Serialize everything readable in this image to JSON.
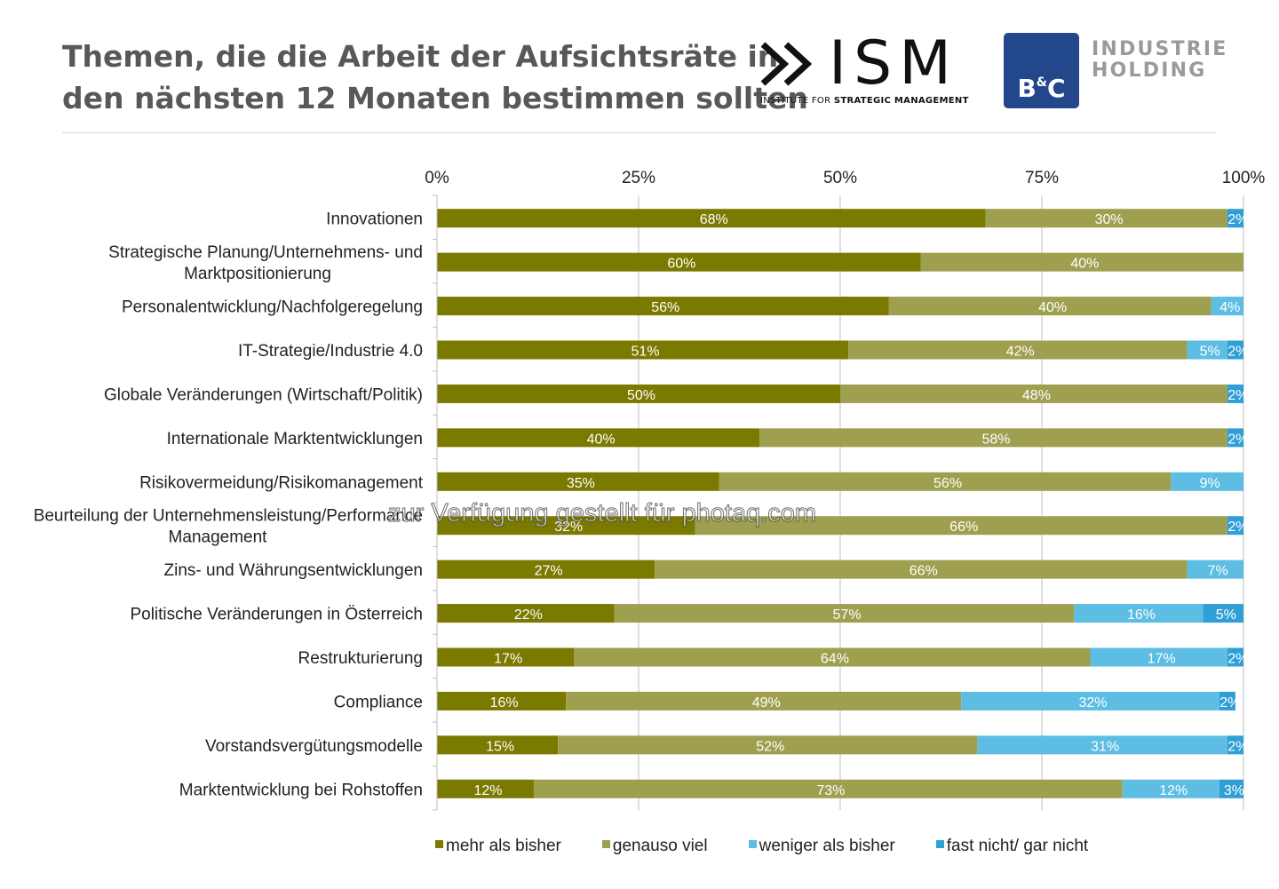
{
  "header": {
    "title_lines": [
      "Themen, die die Arbeit der Aufsichtsräte in",
      "den nächsten 12 Monaten bestimmen sollten"
    ],
    "ism_logo": {
      "name": "ISM",
      "sub_prefix": "INSTITUTE FOR ",
      "sub_bold": "STRATEGIC MANAGEMENT"
    },
    "bc_logo": {
      "letters_left": "B",
      "amp": "&",
      "letters_right": "C",
      "text_lines": [
        "INDUSTRIE",
        "HOLDING"
      ]
    }
  },
  "watermark": "zur Verfügung gestellt für photaq.com",
  "colors": {
    "mehr": "#7a7900",
    "genauso": "#9ea04f",
    "weniger": "#5dbde3",
    "fast": "#2f9fd5",
    "axis": "#bfbfbf",
    "label_text": "#222222"
  },
  "chart_data": {
    "type": "bar",
    "orientation": "horizontal",
    "stacked": true,
    "percent": true,
    "title": "Themen, die die Arbeit der Aufsichtsräte in den nächsten 12 Monaten bestimmen sollten",
    "xlim": [
      0,
      100
    ],
    "xticks": [
      "0%",
      "25%",
      "50%",
      "75%",
      "100%"
    ],
    "xtick_values": [
      0,
      25,
      50,
      75,
      100
    ],
    "grid": true,
    "legend_position": "bottom",
    "categories": [
      "Innovationen",
      "Strategische Planung/Unternehmens- und Marktpositionierung",
      "Personalentwicklung/Nachfolgeregelung",
      "IT-Strategie/Industrie 4.0",
      "Globale Veränderungen (Wirtschaft/Politik)",
      "Internationale Marktentwicklungen",
      "Risikovermeidung/Risikomanagement",
      "Beurteilung der Unternehmensleistung/Performance Management",
      "Zins- und Währungsentwicklungen",
      "Politische Veränderungen in Österreich",
      "Restrukturierung",
      "Compliance",
      "Vorstandsvergütungsmodelle",
      "Marktentwicklung bei Rohstoffen"
    ],
    "category_label_lines": [
      [
        "Innovationen"
      ],
      [
        "Strategische Planung/Unternehmens- und",
        "Marktpositionierung"
      ],
      [
        "Personalentwicklung/Nachfolgeregelung"
      ],
      [
        "IT-Strategie/Industrie 4.0"
      ],
      [
        "Globale Veränderungen (Wirtschaft/Politik)"
      ],
      [
        "Internationale Marktentwicklungen"
      ],
      [
        "Risikovermeidung/Risikomanagement"
      ],
      [
        "Beurteilung der Unternehmensleistung/Performance",
        "Management"
      ],
      [
        "Zins- und Währungsentwicklungen"
      ],
      [
        "Politische Veränderungen in Österreich"
      ],
      [
        "Restrukturierung"
      ],
      [
        "Compliance"
      ],
      [
        "Vorstandsvergütungsmodelle"
      ],
      [
        "Marktentwicklung bei Rohstoffen"
      ]
    ],
    "series": [
      {
        "name": "mehr als bisher",
        "color": "#7a7900",
        "values": [
          68,
          60,
          56,
          51,
          50,
          40,
          35,
          32,
          27,
          22,
          17,
          16,
          15,
          12
        ]
      },
      {
        "name": "genauso viel",
        "color": "#9ea04f",
        "values": [
          30,
          40,
          40,
          42,
          48,
          58,
          56,
          66,
          66,
          57,
          64,
          49,
          52,
          73
        ]
      },
      {
        "name": "weniger als bisher",
        "color": "#5dbde3",
        "values": [
          0,
          0,
          4,
          5,
          0,
          0,
          9,
          0,
          7,
          16,
          17,
          32,
          31,
          12
        ]
      },
      {
        "name": "fast nicht/ gar nicht",
        "color": "#2f9fd5",
        "values": [
          2,
          0,
          0,
          2,
          2,
          2,
          0,
          2,
          0,
          5,
          2,
          2,
          2,
          3
        ]
      }
    ]
  }
}
